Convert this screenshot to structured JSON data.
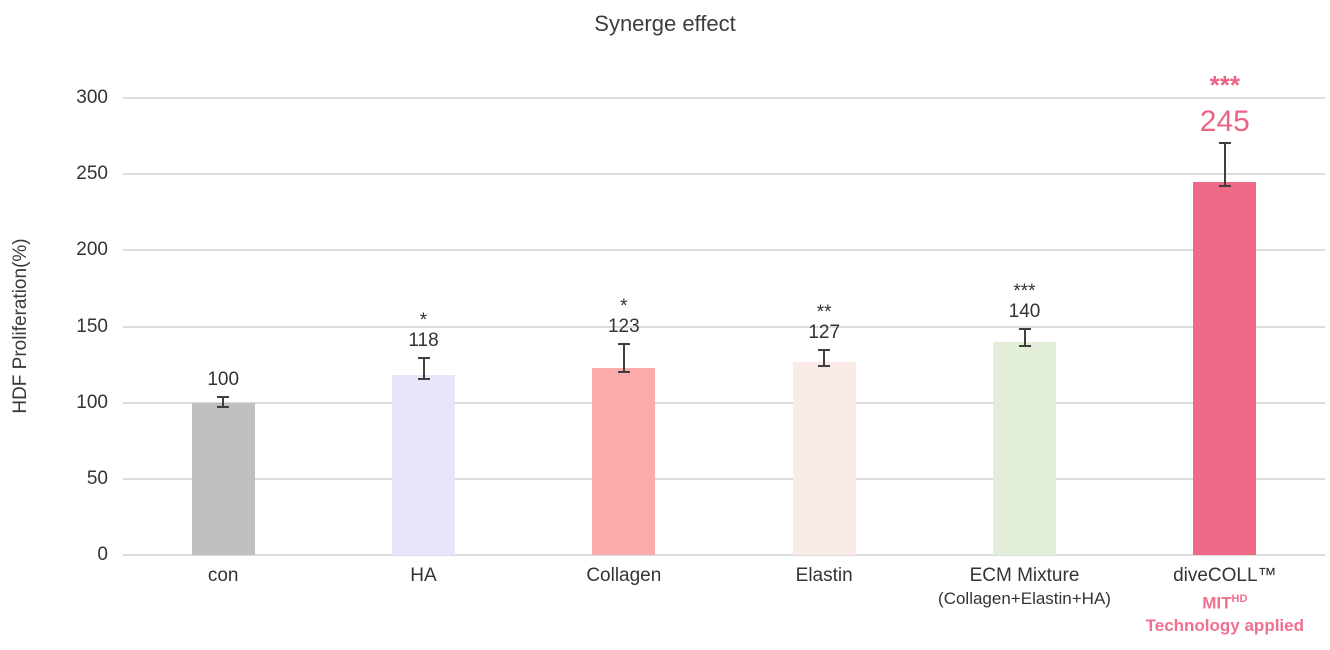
{
  "page": {
    "background": "#ffffff"
  },
  "chart_data": {
    "type": "bar",
    "title": "Synerge effect",
    "ylabel": "HDF Proliferation(%)",
    "ylim": [
      0,
      300
    ],
    "yticks": [
      0,
      50,
      100,
      150,
      200,
      250,
      300
    ],
    "grid": true,
    "legend": false,
    "categories": [
      "con",
      "HA",
      "Collagen",
      "Elastin",
      "ECM Mixture",
      "diveCOLL™"
    ],
    "values": [
      100,
      118,
      123,
      127,
      140,
      245
    ],
    "errors": [
      3,
      11,
      15,
      7,
      8,
      25
    ],
    "significance": [
      "",
      "*",
      "*",
      "**",
      "***",
      "***"
    ],
    "accent_color": "#ec6484",
    "accent_label_color": "#f0708e",
    "grid_color": "#dcdcdc",
    "bars": [
      {
        "category": "con",
        "value": 100,
        "error": 3,
        "stars": "",
        "color": "#bfbfbf"
      },
      {
        "category": "HA",
        "value": 118,
        "error": 11,
        "stars": "*",
        "color": "#e9e4f9"
      },
      {
        "category": "Collagen",
        "value": 123,
        "error": 15,
        "stars": "*",
        "color": "#fbabaa"
      },
      {
        "category": "Elastin",
        "value": 127,
        "error": 7,
        "stars": "**",
        "color": "#faeae8"
      },
      {
        "category": "ECM Mixture",
        "value": 140,
        "error": 8,
        "stars": "***",
        "color": "#e2eed8",
        "sub": "(Collagen+Elastin+HA)"
      },
      {
        "category": "diveCOLL™",
        "value": 245,
        "error": 25,
        "stars": "***",
        "color": "#ee6a86",
        "highlight": true,
        "sub_brand": "MIT",
        "sub_brand_sup": "HD",
        "sub_note": "Technology applied"
      }
    ]
  }
}
